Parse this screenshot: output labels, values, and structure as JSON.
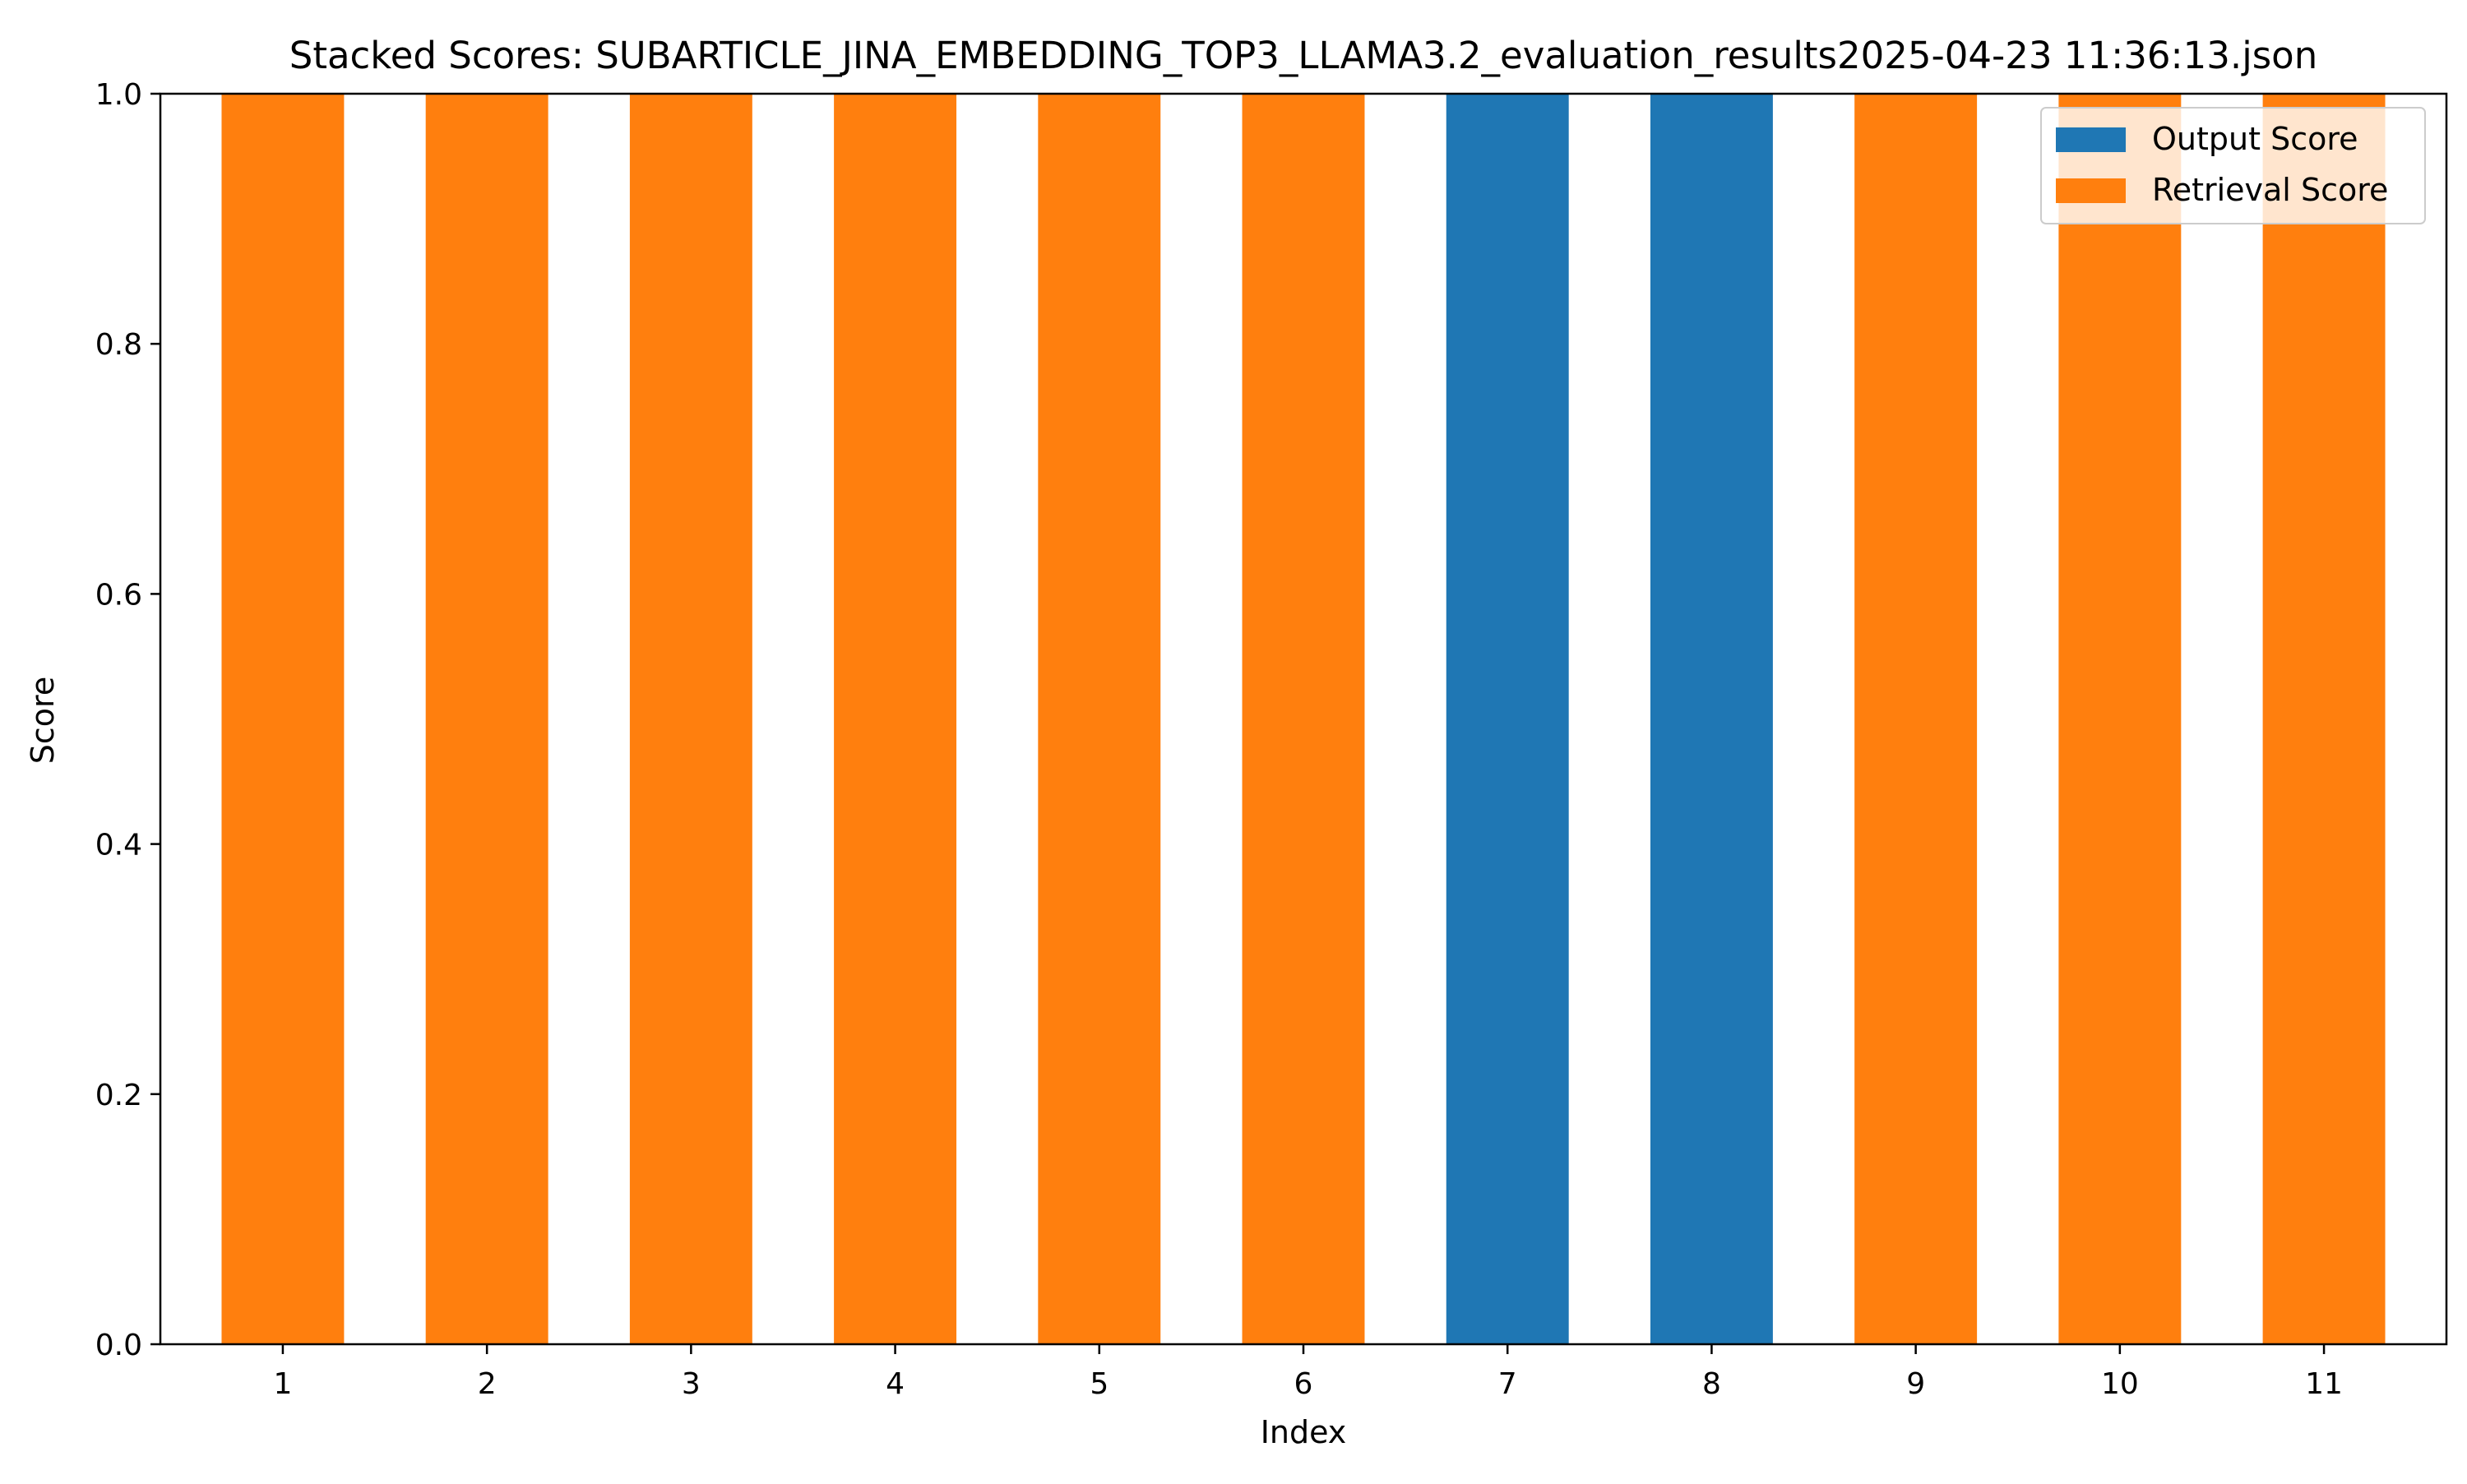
{
  "chart_data": {
    "type": "bar",
    "stacked": true,
    "title": "Stacked Scores: SUBARTICLE_JINA_EMBEDDING_TOP3_LLAMA3.2_evaluation_results2025-04-23 11:36:13.json",
    "xlabel": "Index",
    "ylabel": "Score",
    "categories": [
      "1",
      "2",
      "3",
      "4",
      "5",
      "6",
      "7",
      "8",
      "9",
      "10",
      "11"
    ],
    "series": [
      {
        "name": "Output Score",
        "color": "#1f77b4",
        "values": [
          0,
          0,
          0,
          0,
          0,
          0,
          1,
          1,
          0,
          0,
          0
        ]
      },
      {
        "name": "Retrieval Score",
        "color": "#ff7f0e",
        "values": [
          1,
          1,
          1,
          1,
          1,
          1,
          0,
          0,
          1,
          1,
          1
        ]
      }
    ],
    "ylim": [
      0,
      1.0
    ],
    "yticks": [
      "0.0",
      "0.2",
      "0.4",
      "0.6",
      "0.8",
      "1.0"
    ],
    "grid": false,
    "legend_position": "upper right"
  }
}
